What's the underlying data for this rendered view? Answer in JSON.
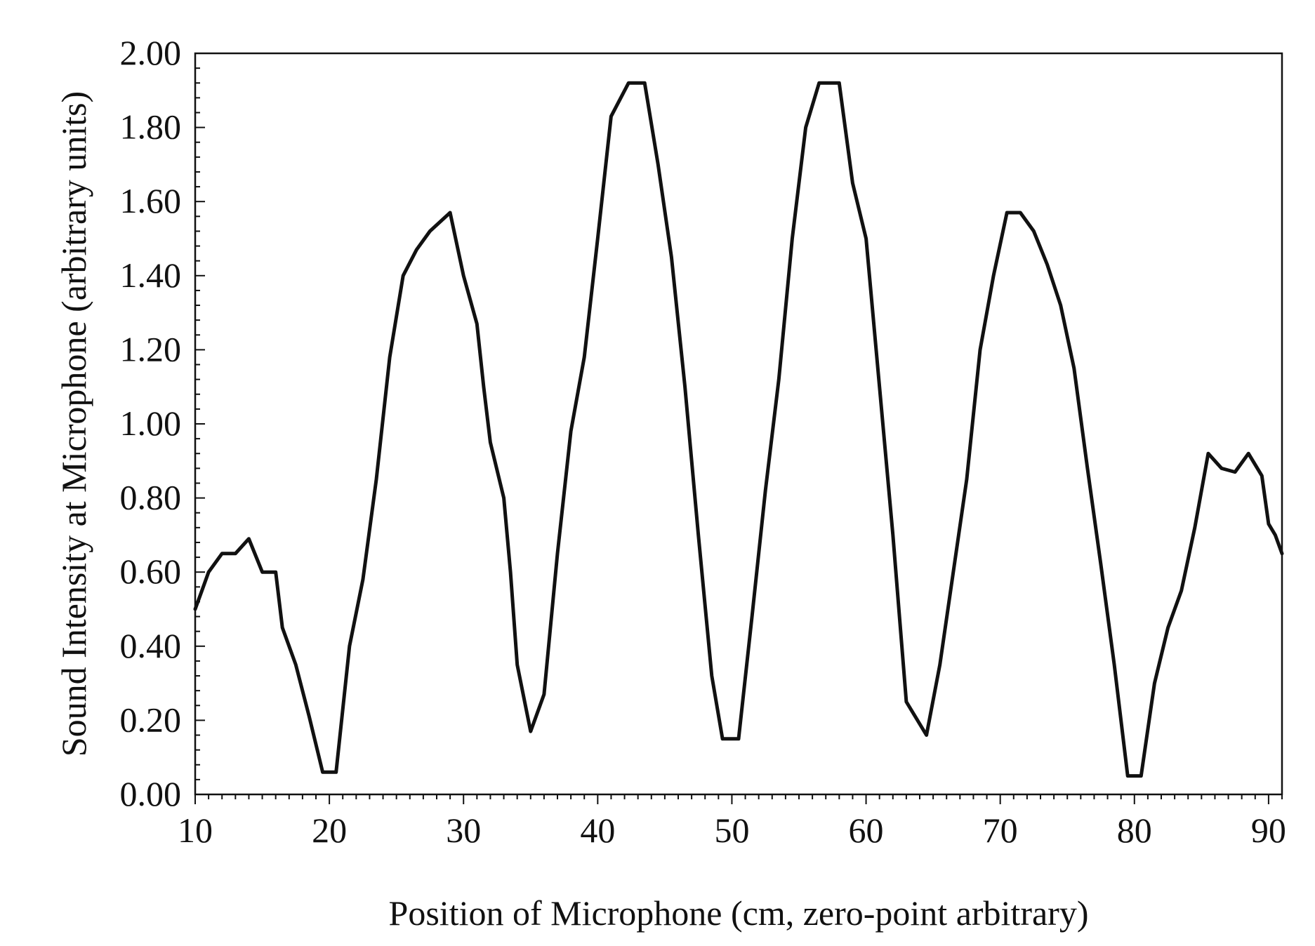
{
  "chart_data": {
    "type": "line",
    "title": "",
    "xlabel": "Position of Microphone (cm, zero-point arbitrary)",
    "ylabel": "Sound Intensity at Microphone (arbitrary units)",
    "xlim": [
      10,
      91
    ],
    "ylim": [
      0,
      2.0
    ],
    "xticks": [
      10,
      20,
      30,
      40,
      50,
      60,
      70,
      80,
      90
    ],
    "xtick_labels": [
      "10",
      "20",
      "30",
      "40",
      "50",
      "60",
      "70",
      "80",
      "90"
    ],
    "yticks": [
      0,
      0.2,
      0.4,
      0.6,
      0.8,
      1.0,
      1.2,
      1.4,
      1.6,
      1.8,
      2.0
    ],
    "ytick_labels": [
      "0.00",
      "0.20",
      "0.40",
      "0.60",
      "0.80",
      "1.00",
      "1.20",
      "1.40",
      "1.60",
      "1.80",
      "2.00"
    ],
    "grid": false,
    "line_color": "#111111",
    "series": [
      {
        "x": [
          10,
          10.5,
          11,
          12,
          13,
          13.5,
          14,
          15,
          16,
          16.5,
          17.5,
          18.5,
          19.5,
          20.5,
          21.5,
          22.5,
          23.5,
          24.5,
          25.5,
          26.5,
          27.5,
          29.0,
          30.0,
          31.0,
          31.5,
          32.0,
          33.0,
          33.5,
          34.0,
          35.0,
          36.0,
          37.0,
          38.0,
          39.0,
          40.0,
          41.0,
          42.3,
          43.5,
          44.5,
          45.5,
          46.5,
          47.5,
          48.5,
          49.3,
          50.5,
          51.5,
          52.5,
          53.5,
          54.5,
          55.5,
          56.5,
          58.0,
          59.0,
          60.0,
          61.0,
          62.0,
          63.0,
          64.5,
          65.5,
          66.5,
          67.5,
          68.5,
          69.5,
          70.5,
          71.5,
          72.5,
          73.5,
          74.5,
          75.5,
          76.5,
          77.5,
          78.5,
          79.5,
          80.5,
          81.5,
          82.5,
          83.5,
          84.5,
          85.5,
          86.5,
          87.5,
          88.5,
          89.5,
          90.0,
          90.5,
          91.0
        ],
        "y": [
          0.5,
          0.55,
          0.6,
          0.65,
          0.65,
          0.67,
          0.69,
          0.6,
          0.6,
          0.45,
          0.35,
          0.21,
          0.06,
          0.06,
          0.4,
          0.58,
          0.85,
          1.18,
          1.4,
          1.47,
          1.52,
          1.57,
          1.4,
          1.27,
          1.1,
          0.95,
          0.8,
          0.6,
          0.35,
          0.17,
          0.27,
          0.65,
          0.98,
          1.18,
          1.5,
          1.83,
          1.92,
          1.92,
          1.7,
          1.45,
          1.1,
          0.7,
          0.32,
          0.15,
          0.15,
          0.48,
          0.82,
          1.12,
          1.5,
          1.8,
          1.92,
          1.92,
          1.65,
          1.5,
          1.1,
          0.7,
          0.25,
          0.16,
          0.35,
          0.6,
          0.85,
          1.2,
          1.4,
          1.57,
          1.57,
          1.52,
          1.43,
          1.32,
          1.15,
          0.88,
          0.62,
          0.35,
          0.05,
          0.05,
          0.3,
          0.45,
          0.55,
          0.72,
          0.92,
          0.88,
          0.87,
          0.92,
          0.86,
          0.73,
          0.7,
          0.65
        ]
      }
    ]
  }
}
